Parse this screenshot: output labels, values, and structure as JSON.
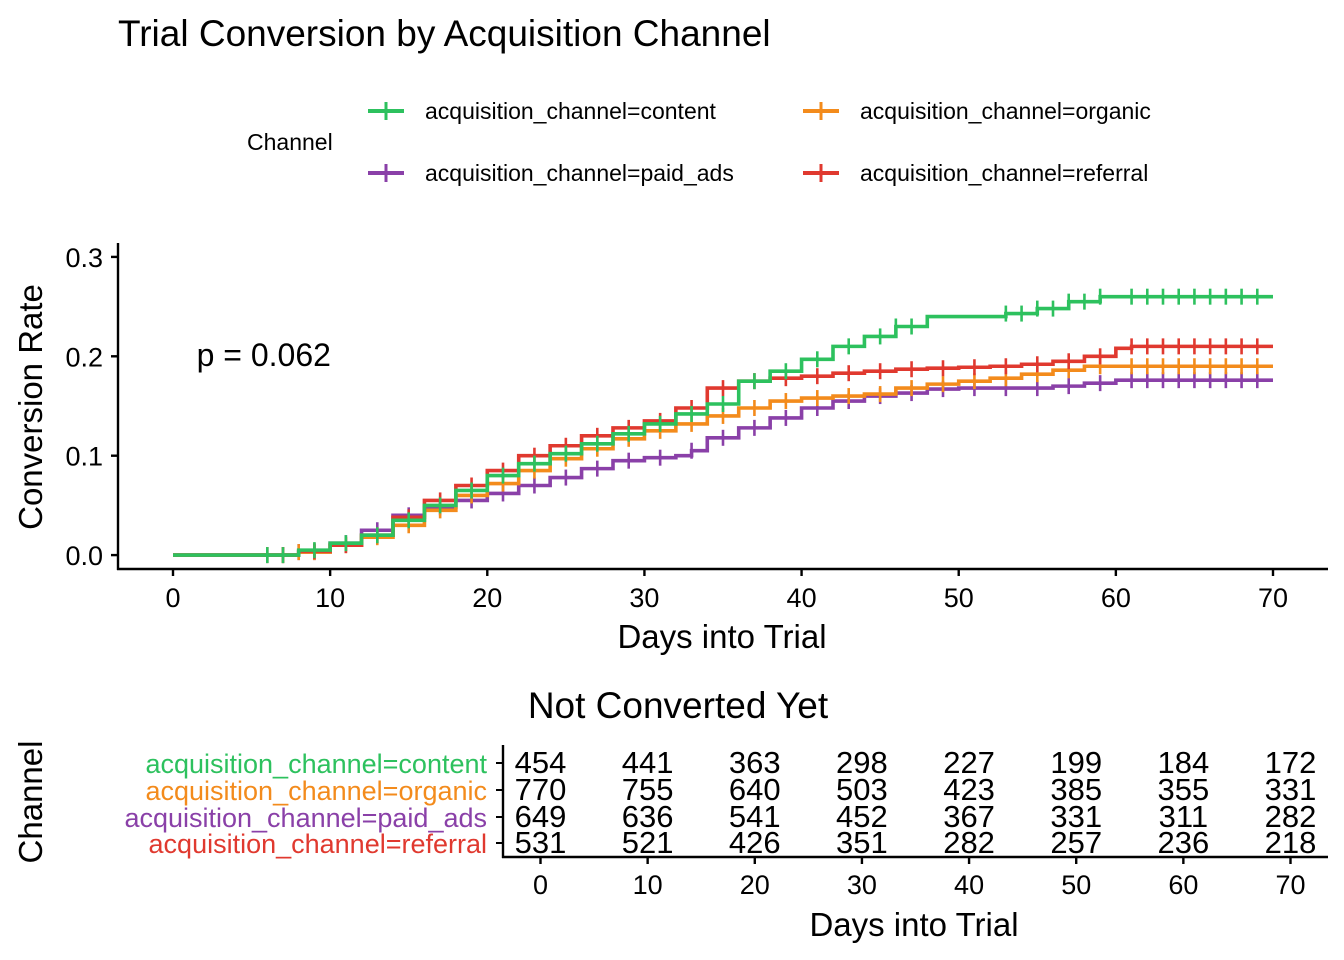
{
  "chart_data": {
    "type": "line",
    "title": "Trial Conversion by Acquisition Channel",
    "xlabel": "Days into Trial",
    "ylabel": "Conversion Rate",
    "xlim": [
      -3.5,
      73.5
    ],
    "ylim": [
      -0.014,
      0.314
    ],
    "x_ticks": [
      0,
      10,
      20,
      30,
      40,
      50,
      60,
      70
    ],
    "y_ticks": [
      0.0,
      0.1,
      0.2,
      0.3
    ],
    "y_tick_labels": [
      "0.0",
      "0.1",
      "0.2",
      "0.3"
    ],
    "annotation": "p = 0.062",
    "annotation_at": [
      1.5,
      0.19
    ],
    "grid": false,
    "legend": {
      "title": "Channel",
      "placement": "top",
      "entries": [
        {
          "label": "acquisition_channel=content",
          "color": "#2DC15E"
        },
        {
          "label": "acquisition_channel=organic",
          "color": "#F38B1C"
        },
        {
          "label": "acquisition_channel=paid_ads",
          "color": "#8A40A8"
        },
        {
          "label": "acquisition_channel=referral",
          "color": "#E0392F"
        }
      ]
    },
    "series": [
      {
        "name": "acquisition_channel=content",
        "color": "#2DC15E",
        "x": [
          0,
          5,
          8,
          10,
          12,
          14,
          16,
          18,
          20,
          22,
          24,
          26,
          28,
          30,
          32,
          34,
          36,
          38,
          40,
          42,
          44,
          46,
          48,
          50,
          52,
          53,
          55,
          57,
          59,
          62,
          70
        ],
        "y": [
          0,
          0,
          0.005,
          0.012,
          0.02,
          0.035,
          0.05,
          0.065,
          0.08,
          0.092,
          0.102,
          0.112,
          0.122,
          0.132,
          0.142,
          0.152,
          0.175,
          0.185,
          0.197,
          0.21,
          0.22,
          0.23,
          0.24,
          0.24,
          0.24,
          0.243,
          0.248,
          0.255,
          0.26,
          0.26,
          0.26
        ],
        "censor_x": [
          6,
          7,
          9,
          11,
          13,
          15,
          17,
          19,
          21,
          23,
          25,
          27,
          29,
          31,
          33,
          35,
          37,
          39,
          41,
          43,
          45,
          46,
          47,
          53,
          54,
          55,
          56,
          57,
          58,
          59,
          61,
          62,
          63,
          64,
          65,
          66,
          67,
          68,
          69
        ]
      },
      {
        "name": "acquisition_channel=organic",
        "color": "#F38B1C",
        "x": [
          0,
          6,
          8,
          10,
          12,
          14,
          16,
          18,
          20,
          22,
          24,
          26,
          28,
          30,
          32,
          34,
          36,
          38,
          40,
          42,
          44,
          46,
          48,
          50,
          52,
          54,
          56,
          58,
          60,
          70
        ],
        "y": [
          0,
          0,
          0.003,
          0.01,
          0.018,
          0.03,
          0.045,
          0.06,
          0.072,
          0.085,
          0.097,
          0.107,
          0.117,
          0.125,
          0.132,
          0.14,
          0.148,
          0.155,
          0.158,
          0.16,
          0.162,
          0.168,
          0.172,
          0.175,
          0.178,
          0.182,
          0.186,
          0.19,
          0.19,
          0.19
        ],
        "censor_x": [
          6,
          7,
          8,
          9,
          11,
          13,
          15,
          17,
          19,
          21,
          23,
          25,
          27,
          29,
          31,
          33,
          35,
          37,
          39,
          41,
          43,
          45,
          47,
          49,
          51,
          53,
          55,
          57,
          59,
          61,
          62,
          63,
          64,
          65,
          66,
          67,
          68,
          69
        ]
      },
      {
        "name": "acquisition_channel=paid_ads",
        "color": "#8A40A8",
        "x": [
          0,
          6,
          8,
          10,
          12,
          14,
          16,
          18,
          20,
          22,
          24,
          26,
          28,
          30,
          32,
          33,
          34,
          36,
          38,
          40,
          42,
          44,
          46,
          48,
          50,
          53,
          56,
          58,
          60,
          70
        ],
        "y": [
          0,
          0,
          0.003,
          0.012,
          0.025,
          0.04,
          0.048,
          0.055,
          0.062,
          0.07,
          0.078,
          0.087,
          0.095,
          0.098,
          0.1,
          0.105,
          0.118,
          0.128,
          0.138,
          0.148,
          0.155,
          0.16,
          0.163,
          0.167,
          0.168,
          0.168,
          0.17,
          0.173,
          0.176,
          0.176
        ],
        "censor_x": [
          6,
          7,
          8,
          9,
          11,
          13,
          15,
          17,
          19,
          21,
          23,
          25,
          27,
          29,
          31,
          33,
          35,
          37,
          39,
          41,
          43,
          45,
          47,
          49,
          51,
          53,
          55,
          57,
          59,
          61,
          62,
          63,
          64,
          65,
          66,
          67,
          68,
          69
        ]
      },
      {
        "name": "acquisition_channel=referral",
        "color": "#E0392F",
        "x": [
          0,
          6,
          8,
          10,
          12,
          14,
          16,
          18,
          20,
          22,
          24,
          26,
          28,
          30,
          32,
          34,
          36,
          38,
          40,
          42,
          44,
          46,
          48,
          50,
          52,
          54,
          56,
          58,
          60,
          61,
          70
        ],
        "y": [
          0,
          0,
          0.004,
          0.01,
          0.02,
          0.038,
          0.055,
          0.07,
          0.085,
          0.1,
          0.11,
          0.12,
          0.128,
          0.135,
          0.148,
          0.168,
          0.175,
          0.178,
          0.18,
          0.183,
          0.185,
          0.187,
          0.188,
          0.189,
          0.19,
          0.192,
          0.195,
          0.2,
          0.208,
          0.21,
          0.21
        ],
        "censor_x": [
          7,
          9,
          11,
          13,
          15,
          17,
          19,
          21,
          23,
          25,
          27,
          29,
          31,
          33,
          35,
          37,
          39,
          41,
          43,
          45,
          47,
          49,
          51,
          53,
          55,
          57,
          59,
          61,
          62,
          63,
          64,
          65,
          66,
          67,
          68,
          69
        ]
      }
    ],
    "risk_table": {
      "title": "Not Converted Yet",
      "ylabel": "Channel",
      "xlabel": "Days into Trial",
      "x_ticks": [
        0,
        10,
        20,
        30,
        40,
        50,
        60,
        70
      ],
      "rows": [
        {
          "label": "acquisition_channel=content",
          "color": "#2DC15E",
          "values": [
            454,
            441,
            363,
            298,
            227,
            199,
            184,
            172
          ]
        },
        {
          "label": "acquisition_channel=organic",
          "color": "#F38B1C",
          "values": [
            770,
            755,
            640,
            503,
            423,
            385,
            355,
            331
          ]
        },
        {
          "label": "acquisition_channel=paid_ads",
          "color": "#8A40A8",
          "values": [
            649,
            636,
            541,
            452,
            367,
            331,
            311,
            282
          ]
        },
        {
          "label": "acquisition_channel=referral",
          "color": "#E0392F",
          "values": [
            531,
            521,
            426,
            351,
            282,
            257,
            236,
            218
          ]
        }
      ]
    }
  }
}
